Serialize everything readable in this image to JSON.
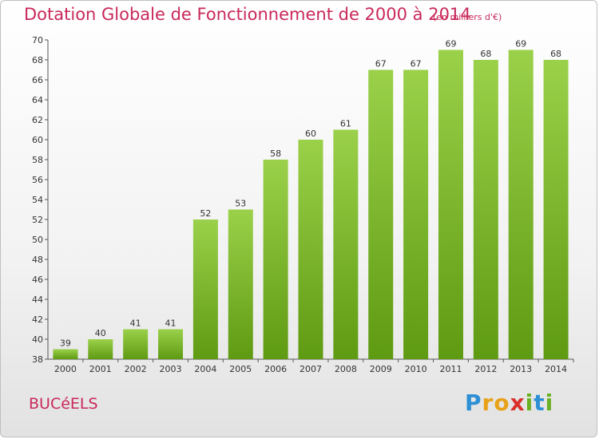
{
  "chart_data": {
    "type": "bar",
    "title": "Dotation Globale de Fonctionnement de 2000 à 2014",
    "subtitle": "(en milliers d'€)",
    "categories": [
      "2000",
      "2001",
      "2002",
      "2003",
      "2004",
      "2005",
      "2006",
      "2007",
      "2008",
      "2009",
      "2010",
      "2011",
      "2012",
      "2013",
      "2014"
    ],
    "values": [
      39,
      40,
      41,
      41,
      52,
      53,
      58,
      60,
      61,
      67,
      67,
      69,
      68,
      69,
      68
    ],
    "ylim": [
      38,
      70
    ],
    "yticks": [
      38,
      40,
      42,
      44,
      46,
      48,
      50,
      52,
      54,
      56,
      58,
      60,
      62,
      64,
      66,
      68,
      70
    ],
    "xlabel": "",
    "ylabel": "",
    "grid": false
  },
  "commune": "BUCéELS",
  "logo": {
    "text": "Proxiti",
    "letters": [
      "P",
      "r",
      "o",
      "x",
      "i",
      "t",
      "i"
    ],
    "colors": [
      "#2d8fd4",
      "#e8a21a",
      "#e8a21a",
      "#d9302c",
      "#6ab023",
      "#2d8fd4",
      "#6ab023"
    ]
  },
  "colors": {
    "title": "#c9285a",
    "bar_light": "#9bd14a",
    "bar_dark": "#5e9a12"
  }
}
